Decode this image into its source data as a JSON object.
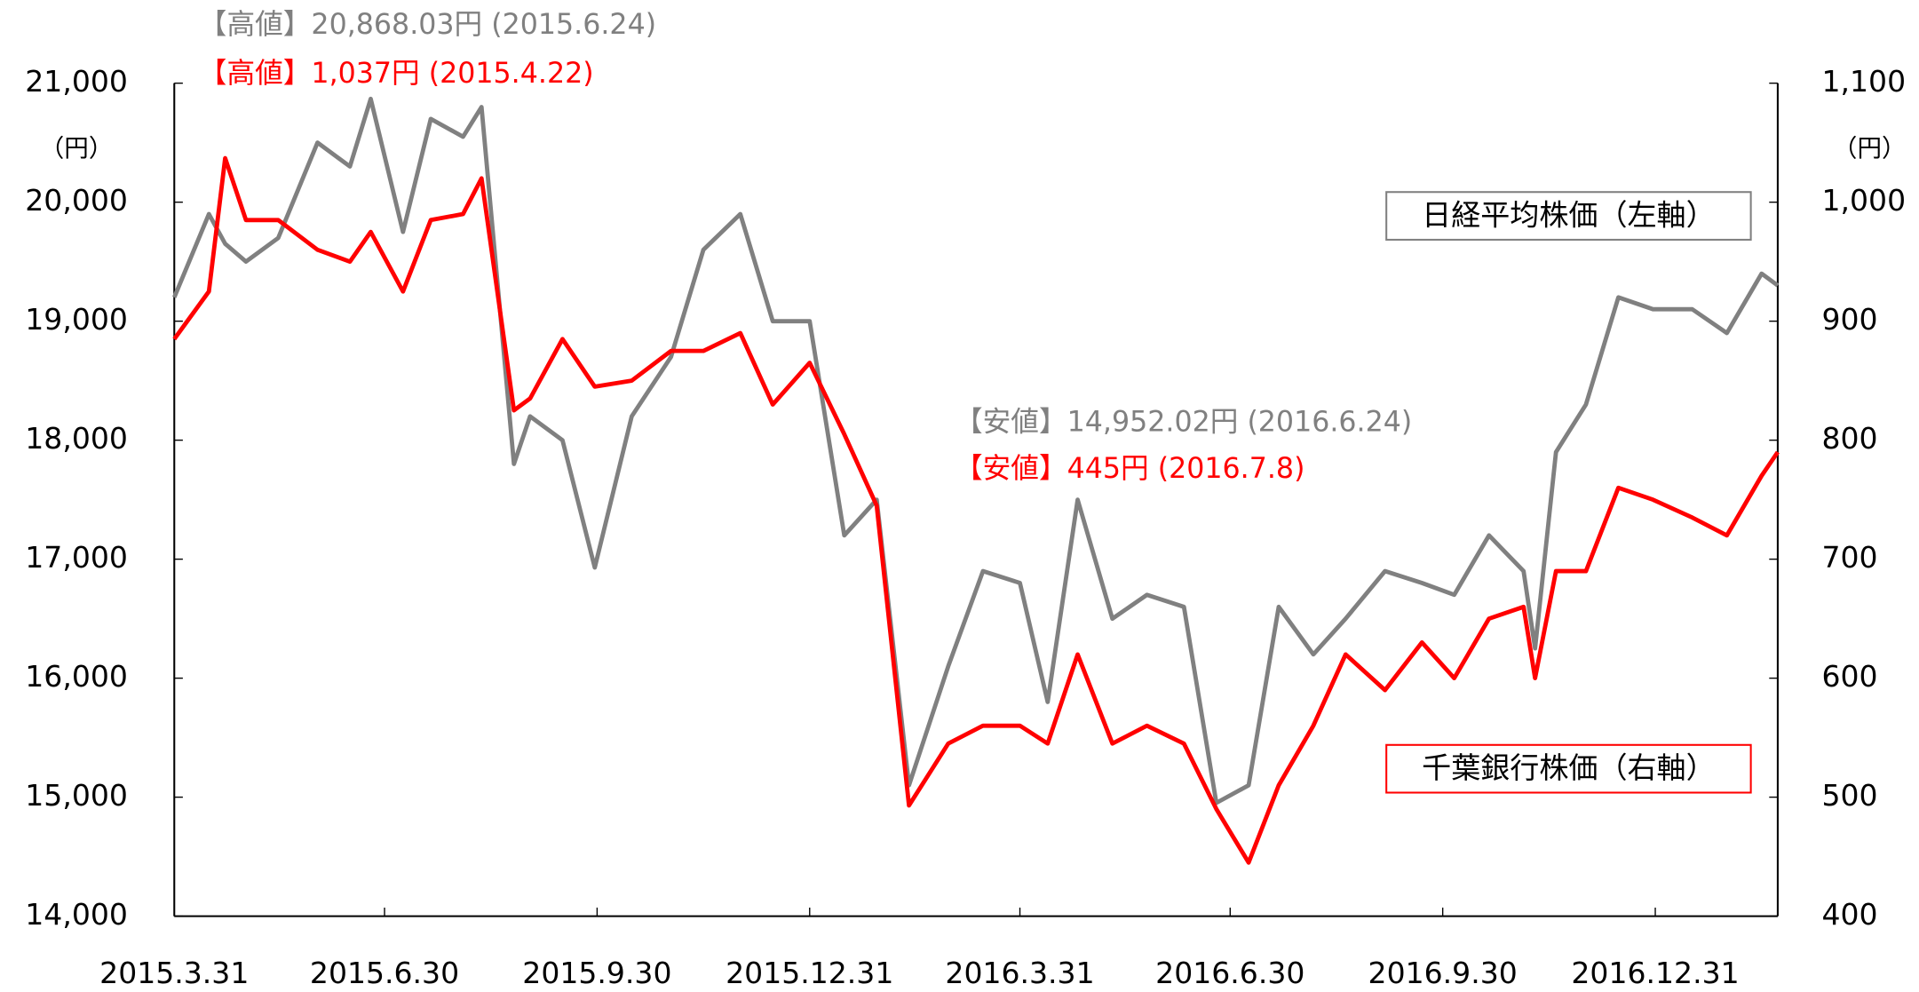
{
  "chart_data": {
    "type": "line",
    "annotations": [
      {
        "text": "【高値】20,868.03円 (2015.6.24)",
        "color": "#808080"
      },
      {
        "text": "【高値】1,037円 (2015.4.22)",
        "color": "#ff0000"
      },
      {
        "text": "【安値】14,952.02円 (2016.6.24)",
        "color": "#808080"
      },
      {
        "text": "【安値】445円 (2016.7.8)",
        "color": "#ff0000"
      }
    ],
    "y_unit": "（円）",
    "y2_unit": "（円）",
    "x": [
      "2015.3.31",
      "2015.4.15",
      "2015.4.22",
      "2015.5.1",
      "2015.5.15",
      "2015.6.1",
      "2015.6.15",
      "2015.6.24",
      "2015.7.8",
      "2015.7.20",
      "2015.8.3",
      "2015.8.11",
      "2015.8.25",
      "2015.9.1",
      "2015.9.15",
      "2015.9.29",
      "2015.10.15",
      "2015.11.1",
      "2015.11.15",
      "2015.12.1",
      "2015.12.15",
      "2015.12.31",
      "2016.1.15",
      "2016.1.29",
      "2016.2.12",
      "2016.2.29",
      "2016.3.15",
      "2016.3.31",
      "2016.4.12",
      "2016.4.25",
      "2016.5.10",
      "2016.5.25",
      "2016.6.10",
      "2016.6.24",
      "2016.7.8",
      "2016.7.21",
      "2016.8.5",
      "2016.8.19",
      "2016.9.5",
      "2016.9.21",
      "2016.10.5",
      "2016.10.20",
      "2016.11.4",
      "2016.11.9",
      "2016.11.18",
      "2016.12.1",
      "2016.12.15",
      "2016.12.30",
      "2017.1.16",
      "2017.1.31",
      "2017.2.15",
      "2017.2.22"
    ],
    "series": [
      {
        "name": "日経平均株価（左軸）",
        "color": "#808080",
        "values": [
          19200,
          19900,
          19650,
          19500,
          19700,
          20500,
          20300,
          20868,
          19750,
          20700,
          20550,
          20800,
          17800,
          18200,
          18000,
          16930,
          18200,
          18700,
          19600,
          19900,
          19000,
          19000,
          17200,
          17500,
          15100,
          16100,
          16900,
          16800,
          15800,
          17500,
          16500,
          16700,
          16600,
          14952,
          15100,
          16600,
          16200,
          16500,
          16900,
          16800,
          16700,
          17200,
          16900,
          16250,
          17900,
          18300,
          19200,
          19100,
          19100,
          18900,
          19400,
          19300
        ]
      },
      {
        "name": "千葉銀行株価（右軸）",
        "color": "#ff0000",
        "axis": "y2",
        "values": [
          885,
          925,
          1037,
          985,
          985,
          960,
          950,
          975,
          925,
          985,
          990,
          1020,
          825,
          835,
          885,
          845,
          850,
          875,
          875,
          890,
          830,
          865,
          805,
          745,
          493,
          545,
          560,
          560,
          545,
          620,
          545,
          560,
          545,
          490,
          445,
          510,
          560,
          620,
          590,
          630,
          600,
          650,
          660,
          600,
          690,
          690,
          760,
          750,
          735,
          720,
          770,
          790
        ]
      }
    ],
    "xlim": [
      "2015.3.31",
      "2017.2.22"
    ],
    "xticks": [
      "2015.3.31",
      "2015.6.30",
      "2015.9.30",
      "2015.12.31",
      "2016.3.31",
      "2016.6.30",
      "2016.9.30",
      "2016.12.31"
    ],
    "ylim": [
      14000,
      21000
    ],
    "yticks": [
      {
        "value": 14000,
        "label": "14,000"
      },
      {
        "value": 15000,
        "label": "15,000"
      },
      {
        "value": 16000,
        "label": "16,000"
      },
      {
        "value": 17000,
        "label": "17,000"
      },
      {
        "value": 18000,
        "label": "18,000"
      },
      {
        "value": 19000,
        "label": "19,000"
      },
      {
        "value": 20000,
        "label": "20,000"
      },
      {
        "value": 21000,
        "label": "21,000"
      }
    ],
    "y2lim": [
      400,
      1100
    ],
    "y2ticks": [
      400,
      500,
      600,
      700,
      800,
      900,
      {
        "value": 1000,
        "label": "1,000"
      },
      {
        "value": 1100,
        "label": "1,100"
      }
    ],
    "grid": false
  }
}
